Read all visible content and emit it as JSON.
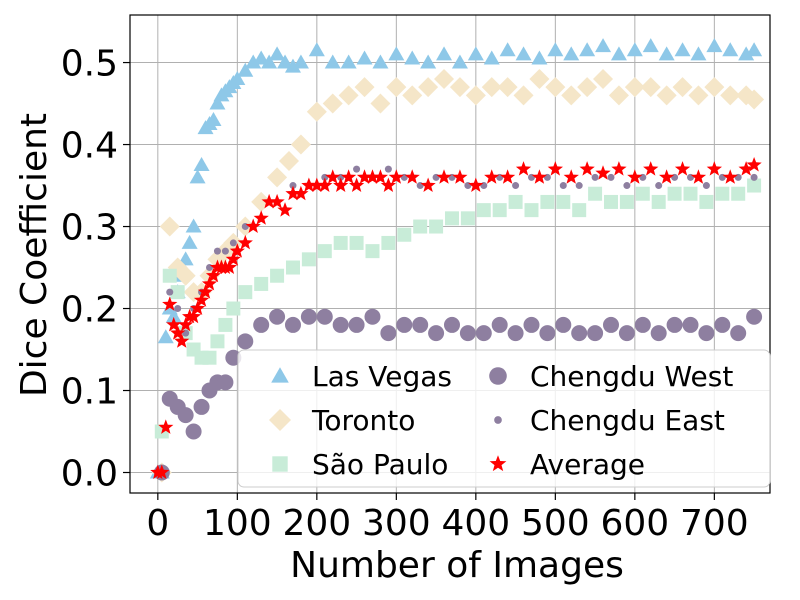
{
  "chart_data": {
    "type": "scatter",
    "xlabel": "Number of Images",
    "ylabel": "Dice Coefficient",
    "xlim": [
      -35,
      770
    ],
    "ylim": [
      -0.025,
      0.558
    ],
    "xticks": [
      0,
      100,
      200,
      300,
      400,
      500,
      600,
      700
    ],
    "yticks": [
      0.0,
      0.1,
      0.2,
      0.3,
      0.4,
      0.5
    ],
    "ytick_labels": [
      "0.0",
      "0.1",
      "0.2",
      "0.3",
      "0.4",
      "0.5"
    ],
    "grid": true,
    "legend_position": "lower-right",
    "legend_columns": 2,
    "series": [
      {
        "name": "Las Vegas",
        "marker": "triangle",
        "color": "#8ec8e8",
        "x": [
          0,
          5,
          10,
          15,
          20,
          25,
          30,
          35,
          40,
          45,
          50,
          55,
          60,
          65,
          70,
          75,
          80,
          85,
          90,
          95,
          100,
          110,
          120,
          130,
          140,
          150,
          160,
          170,
          180,
          200,
          220,
          240,
          260,
          280,
          300,
          320,
          340,
          360,
          380,
          400,
          420,
          440,
          460,
          480,
          500,
          520,
          540,
          560,
          580,
          600,
          620,
          640,
          660,
          680,
          700,
          720,
          740,
          750
        ],
        "y": [
          0,
          0,
          0.165,
          0.2,
          0.19,
          0.22,
          0.24,
          0.26,
          0.28,
          0.3,
          0.36,
          0.375,
          0.42,
          0.425,
          0.43,
          0.45,
          0.46,
          0.465,
          0.47,
          0.475,
          0.48,
          0.49,
          0.5,
          0.505,
          0.5,
          0.51,
          0.5,
          0.495,
          0.5,
          0.515,
          0.5,
          0.5,
          0.505,
          0.5,
          0.51,
          0.505,
          0.5,
          0.51,
          0.5,
          0.51,
          0.505,
          0.515,
          0.51,
          0.505,
          0.515,
          0.51,
          0.515,
          0.52,
          0.51,
          0.515,
          0.52,
          0.51,
          0.515,
          0.51,
          0.52,
          0.515,
          0.51,
          0.515
        ]
      },
      {
        "name": "Toronto",
        "marker": "diamond",
        "color": "#f5e6c8",
        "x": [
          5,
          15,
          25,
          35,
          45,
          55,
          65,
          75,
          85,
          95,
          110,
          130,
          150,
          165,
          180,
          200,
          220,
          240,
          260,
          280,
          300,
          320,
          340,
          360,
          380,
          400,
          420,
          440,
          460,
          480,
          500,
          520,
          540,
          560,
          580,
          600,
          620,
          640,
          660,
          680,
          700,
          720,
          740,
          750
        ],
        "y": [
          0,
          0.3,
          0.25,
          0.24,
          0.22,
          0.22,
          0.24,
          0.26,
          0.27,
          0.28,
          0.3,
          0.33,
          0.36,
          0.38,
          0.4,
          0.44,
          0.45,
          0.46,
          0.47,
          0.45,
          0.47,
          0.46,
          0.47,
          0.48,
          0.47,
          0.46,
          0.47,
          0.47,
          0.46,
          0.48,
          0.47,
          0.46,
          0.47,
          0.48,
          0.46,
          0.47,
          0.47,
          0.46,
          0.47,
          0.46,
          0.47,
          0.46,
          0.46,
          0.455
        ]
      },
      {
        "name": "São Paulo",
        "marker": "square",
        "color": "#c8ecd8",
        "x": [
          5,
          15,
          25,
          35,
          45,
          55,
          65,
          75,
          85,
          95,
          110,
          130,
          150,
          170,
          190,
          210,
          230,
          250,
          270,
          290,
          310,
          330,
          350,
          370,
          390,
          410,
          430,
          450,
          470,
          490,
          510,
          530,
          550,
          570,
          590,
          610,
          630,
          650,
          670,
          690,
          710,
          730,
          750
        ],
        "y": [
          0.05,
          0.24,
          0.22,
          0.17,
          0.15,
          0.14,
          0.14,
          0.16,
          0.18,
          0.2,
          0.22,
          0.23,
          0.24,
          0.25,
          0.26,
          0.27,
          0.28,
          0.28,
          0.27,
          0.28,
          0.29,
          0.3,
          0.3,
          0.31,
          0.31,
          0.32,
          0.32,
          0.33,
          0.32,
          0.33,
          0.33,
          0.32,
          0.34,
          0.33,
          0.33,
          0.34,
          0.33,
          0.34,
          0.34,
          0.33,
          0.34,
          0.34,
          0.35
        ]
      },
      {
        "name": "Chengdu West",
        "marker": "circle",
        "color": "#8e7fa0",
        "x": [
          5,
          15,
          25,
          35,
          45,
          55,
          65,
          75,
          85,
          95,
          110,
          130,
          150,
          170,
          190,
          210,
          230,
          250,
          270,
          290,
          310,
          330,
          350,
          370,
          390,
          410,
          430,
          450,
          470,
          490,
          510,
          530,
          550,
          570,
          590,
          610,
          630,
          650,
          670,
          690,
          710,
          730,
          750
        ],
        "y": [
          0,
          0.09,
          0.08,
          0.07,
          0.05,
          0.08,
          0.1,
          0.11,
          0.11,
          0.14,
          0.16,
          0.18,
          0.19,
          0.18,
          0.19,
          0.19,
          0.18,
          0.18,
          0.19,
          0.17,
          0.18,
          0.18,
          0.17,
          0.18,
          0.17,
          0.17,
          0.18,
          0.17,
          0.18,
          0.17,
          0.18,
          0.17,
          0.17,
          0.18,
          0.17,
          0.18,
          0.17,
          0.18,
          0.18,
          0.17,
          0.18,
          0.17,
          0.19
        ]
      },
      {
        "name": "Chengdu East",
        "marker": "dot",
        "color": "#8e7fa0",
        "x": [
          5,
          15,
          25,
          35,
          45,
          55,
          65,
          75,
          85,
          95,
          110,
          130,
          150,
          170,
          190,
          210,
          230,
          250,
          270,
          290,
          310,
          330,
          350,
          370,
          390,
          410,
          430,
          450,
          470,
          490,
          510,
          530,
          550,
          570,
          590,
          610,
          630,
          650,
          670,
          690,
          710,
          730,
          750
        ],
        "y": [
          0,
          0.22,
          0.2,
          0.17,
          0.2,
          0.22,
          0.25,
          0.27,
          0.27,
          0.28,
          0.3,
          0.31,
          0.33,
          0.35,
          0.35,
          0.36,
          0.36,
          0.37,
          0.36,
          0.37,
          0.36,
          0.35,
          0.36,
          0.36,
          0.35,
          0.35,
          0.36,
          0.35,
          0.36,
          0.36,
          0.35,
          0.35,
          0.36,
          0.36,
          0.35,
          0.36,
          0.35,
          0.36,
          0.36,
          0.35,
          0.36,
          0.36,
          0.36
        ]
      },
      {
        "name": "Average",
        "marker": "star",
        "color": "#ff0000",
        "x": [
          0,
          5,
          10,
          15,
          20,
          25,
          30,
          35,
          40,
          45,
          50,
          55,
          60,
          65,
          70,
          75,
          80,
          85,
          90,
          95,
          100,
          110,
          120,
          130,
          140,
          150,
          160,
          170,
          180,
          190,
          200,
          210,
          220,
          230,
          240,
          250,
          260,
          270,
          280,
          290,
          300,
          320,
          340,
          360,
          380,
          400,
          420,
          440,
          460,
          480,
          500,
          520,
          540,
          560,
          580,
          600,
          620,
          640,
          660,
          680,
          700,
          720,
          740,
          750
        ],
        "y": [
          0,
          0,
          0.055,
          0.205,
          0.18,
          0.17,
          0.16,
          0.18,
          0.19,
          0.19,
          0.2,
          0.21,
          0.22,
          0.23,
          0.24,
          0.25,
          0.25,
          0.25,
          0.25,
          0.26,
          0.27,
          0.28,
          0.3,
          0.31,
          0.33,
          0.33,
          0.32,
          0.34,
          0.34,
          0.35,
          0.35,
          0.35,
          0.36,
          0.35,
          0.36,
          0.35,
          0.36,
          0.36,
          0.36,
          0.35,
          0.36,
          0.36,
          0.35,
          0.36,
          0.36,
          0.35,
          0.36,
          0.36,
          0.37,
          0.36,
          0.37,
          0.36,
          0.37,
          0.365,
          0.37,
          0.36,
          0.37,
          0.36,
          0.37,
          0.36,
          0.37,
          0.36,
          0.37,
          0.375
        ]
      }
    ]
  }
}
